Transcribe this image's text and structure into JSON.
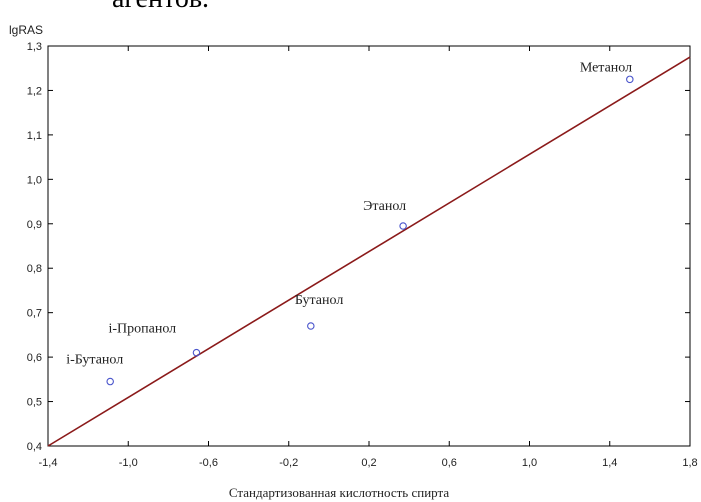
{
  "top_fragment": "агентов.",
  "chart_data": {
    "type": "scatter",
    "title": "",
    "ylabel": "lgRAS",
    "xlabel": "Стандартизованная кислотность спирта",
    "xlim": [
      -1.4,
      1.8
    ],
    "ylim": [
      0.4,
      1.3
    ],
    "grid": false,
    "x_ticks": [
      "-1,4",
      "-1,0",
      "-0,6",
      "-0,2",
      "0,2",
      "0,6",
      "1,0",
      "1,4",
      "1,8"
    ],
    "y_ticks": [
      "0,4",
      "0,5",
      "0,6",
      "0,7",
      "0,8",
      "0,9",
      "1,0",
      "1,1",
      "1,2",
      "1,3"
    ],
    "points": [
      {
        "label": "Метанол",
        "x": 1.5,
        "y": 1.225
      },
      {
        "label": "Этанол",
        "x": 0.37,
        "y": 0.895
      },
      {
        "label": "Бутанол",
        "x": -0.09,
        "y": 0.67
      },
      {
        "label": "i-Пропанол",
        "x": -0.66,
        "y": 0.61
      },
      {
        "label": "i-Бутанол",
        "x": -1.09,
        "y": 0.545
      }
    ],
    "fit_line": {
      "x": [
        -1.4,
        1.8
      ],
      "y": [
        0.4,
        1.275
      ]
    },
    "colors": {
      "points": "#4a55cc",
      "fit_line": "#8b1a1a",
      "frame": "#000000"
    }
  }
}
